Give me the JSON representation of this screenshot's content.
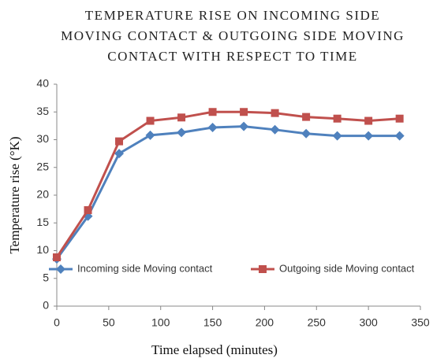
{
  "chart_data": {
    "type": "line",
    "title": [
      "TEMPERATURE RISE ON INCOMING SIDE",
      "MOVING CONTACT & OUTGOING SIDE MOVING",
      "CONTACT WITH RESPECT TO TIME"
    ],
    "x_label": "Time elapsed (minutes)",
    "y_label": "Temperature rise (°K)",
    "x": [
      0,
      30,
      60,
      90,
      120,
      150,
      180,
      210,
      240,
      270,
      300,
      330
    ],
    "series": [
      {
        "name": "Incoming side Moving contact",
        "color": "#4f81bd",
        "marker": "diamond",
        "values": [
          8.5,
          16.2,
          27.5,
          30.8,
          31.3,
          32.2,
          32.4,
          31.8,
          31.1,
          30.7,
          30.7,
          30.7
        ]
      },
      {
        "name": "Outgoing side Moving contact",
        "color": "#c0504d",
        "marker": "square",
        "values": [
          8.8,
          17.3,
          29.7,
          33.4,
          34.0,
          35.0,
          35.0,
          34.8,
          34.1,
          33.8,
          33.4,
          33.8
        ]
      }
    ],
    "xlim": [
      0,
      350
    ],
    "xticks": [
      0,
      50,
      100,
      150,
      200,
      250,
      300,
      350
    ],
    "ylim": [
      0,
      40
    ],
    "yticks": [
      0,
      5,
      10,
      15,
      20,
      25,
      30,
      35,
      40
    ],
    "grid": false,
    "legend": "bottom"
  }
}
